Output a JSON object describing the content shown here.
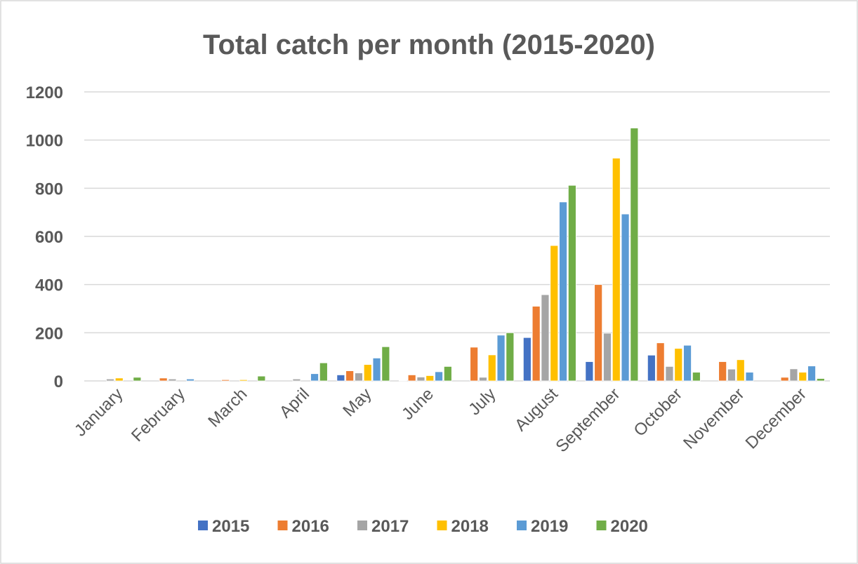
{
  "chart_data": {
    "type": "bar",
    "title": "Total catch per month (2015-2020)",
    "xlabel": "",
    "ylabel": "",
    "ylim": [
      0,
      1200
    ],
    "yticks": [
      0,
      200,
      400,
      600,
      800,
      1000,
      1200
    ],
    "grid": true,
    "legend_position": "bottom",
    "categories": [
      "January",
      "February",
      "March",
      "April",
      "May",
      "June",
      "July",
      "August",
      "September",
      "October",
      "November",
      "December"
    ],
    "series": [
      {
        "name": "2015",
        "color": "#4472c4",
        "values": [
          0,
          0,
          0,
          0,
          25,
          2,
          0,
          180,
          80,
          107,
          0,
          0
        ]
      },
      {
        "name": "2016",
        "color": "#ed7d31",
        "values": [
          0,
          12,
          5,
          0,
          42,
          25,
          140,
          310,
          400,
          158,
          80,
          15
        ]
      },
      {
        "name": "2017",
        "color": "#a5a5a5",
        "values": [
          8,
          8,
          0,
          8,
          33,
          16,
          15,
          358,
          198,
          60,
          49,
          50
        ]
      },
      {
        "name": "2018",
        "color": "#ffc000",
        "values": [
          12,
          0,
          5,
          0,
          68,
          22,
          108,
          562,
          925,
          135,
          88,
          36
        ]
      },
      {
        "name": "2019",
        "color": "#5b9bd5",
        "values": [
          0,
          8,
          0,
          30,
          95,
          38,
          190,
          743,
          693,
          148,
          36,
          62
        ]
      },
      {
        "name": "2020",
        "color": "#70ad47",
        "values": [
          15,
          0,
          20,
          75,
          142,
          60,
          200,
          812,
          1050,
          36,
          0,
          10
        ]
      }
    ]
  }
}
